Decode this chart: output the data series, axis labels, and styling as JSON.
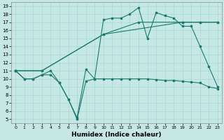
{
  "xlabel": "Humidex (Indice chaleur)",
  "xlim": [
    -0.5,
    23.5
  ],
  "ylim": [
    4.5,
    19.5
  ],
  "xticks": [
    0,
    1,
    2,
    3,
    4,
    5,
    6,
    7,
    8,
    9,
    10,
    11,
    12,
    13,
    14,
    15,
    16,
    17,
    18,
    19,
    20,
    21,
    22,
    23
  ],
  "yticks": [
    5,
    6,
    7,
    8,
    9,
    10,
    11,
    12,
    13,
    14,
    15,
    16,
    17,
    18,
    19
  ],
  "bg_color": "#c6e8e5",
  "grid_color": "#a8d8d4",
  "line_color": "#1a7a70",
  "lines": [
    {
      "x": [
        0,
        1,
        2,
        3,
        4,
        5,
        6,
        7,
        8,
        9,
        10,
        11,
        12,
        13,
        14,
        15,
        16,
        17,
        18,
        19,
        20,
        21,
        22,
        23
      ],
      "y": [
        11,
        10,
        10,
        10.5,
        10.5,
        9.5,
        7.5,
        5,
        9.7,
        10,
        10,
        10,
        10,
        10,
        10,
        10,
        9.9,
        9.8,
        9.8,
        9.7,
        9.6,
        9.5,
        9.0,
        8.8
      ]
    },
    {
      "x": [
        0,
        1,
        2,
        3,
        4,
        5,
        6,
        7,
        8,
        9,
        10,
        11,
        12,
        13,
        14,
        15,
        16,
        17,
        18,
        19,
        20,
        21,
        22,
        23
      ],
      "y": [
        11,
        10,
        10,
        10.5,
        11,
        9.5,
        7.5,
        5.2,
        11.2,
        10,
        17.3,
        17.5,
        17.5,
        18,
        18.8,
        15,
        18.2,
        17.8,
        17.5,
        16.5,
        16.5,
        14,
        11.5,
        9
      ]
    },
    {
      "x": [
        0,
        3,
        10,
        19,
        21,
        23
      ],
      "y": [
        11,
        11,
        15.5,
        17,
        17,
        17
      ]
    },
    {
      "x": [
        0,
        3,
        10,
        14,
        19,
        21,
        23
      ],
      "y": [
        11,
        11,
        15.5,
        17,
        17,
        17,
        17
      ]
    }
  ]
}
